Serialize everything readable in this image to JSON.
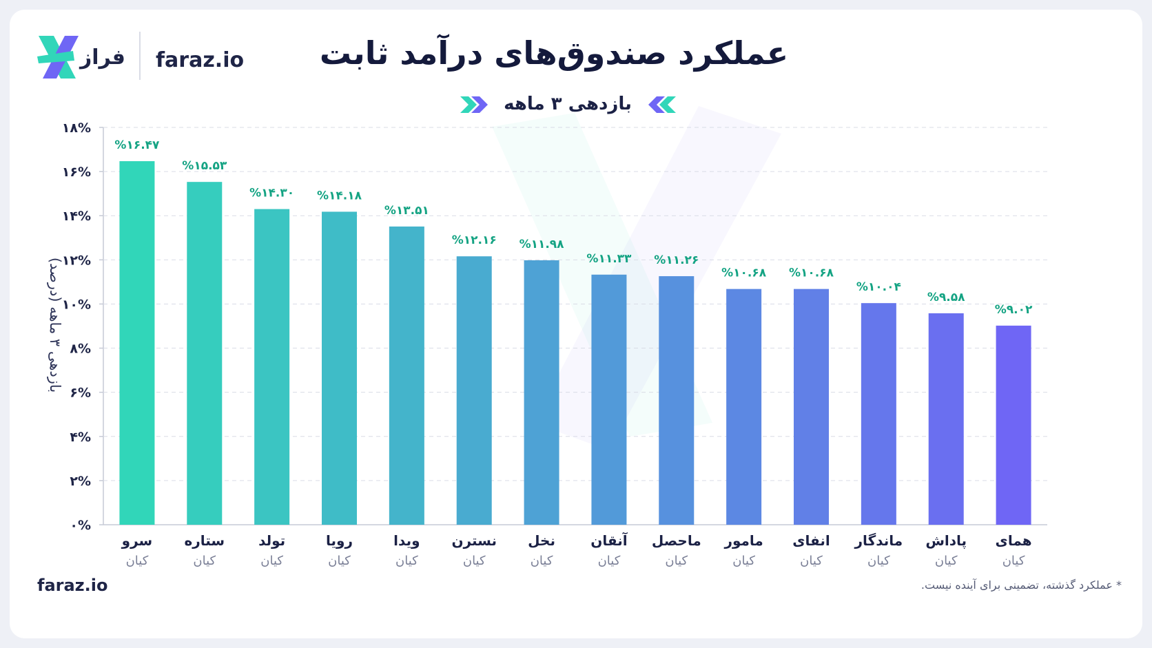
{
  "header": {
    "brand_name": "فراز",
    "site": "faraz.io",
    "title": "عملکرد صندوق‌های درآمد ثابت",
    "subtitle": "بازدهی ۳ ماهه"
  },
  "footer": {
    "site": "faraz.io",
    "disclaimer": "* عملکرد گذشته، تضمینی برای آینده نیست."
  },
  "colors": {
    "bar_start": "#31d6b9",
    "bar_end": "#6f66f5",
    "label": "#14a383",
    "grid": "#d9dce6"
  },
  "chart_data": {
    "type": "bar",
    "title": "عملکرد صندوق‌های درآمد ثابت",
    "subtitle": "بازدهی ۳ ماهه",
    "ylabel": "بازدهی ۳ ماهه (درصد)",
    "xlabel": "",
    "ylim": [
      0,
      18
    ],
    "yticks": [
      0,
      2,
      4,
      6,
      8,
      10,
      12,
      14,
      16,
      18
    ],
    "ytick_labels": [
      "۰%",
      "۲%",
      "۴%",
      "۶%",
      "۸%",
      "۱۰%",
      "۱۲%",
      "۱۴%",
      "۱۶%",
      "۱۸%"
    ],
    "grid": true,
    "categories": [
      "سرو",
      "ستاره",
      "تولد",
      "رویا",
      "ویدا",
      "نسترن",
      "نخل",
      "آنقان",
      "ماحصل",
      "مامور",
      "انفای",
      "ماندگار",
      "پاداش",
      "همای"
    ],
    "category_sub": [
      "کیان",
      "کیان",
      "کیان",
      "کیان",
      "کیان",
      "کیان",
      "کیان",
      "کیان",
      "کیان",
      "کیان",
      "کیان",
      "کیان",
      "کیان",
      "کیان"
    ],
    "values": [
      16.47,
      15.53,
      14.3,
      14.18,
      13.51,
      12.16,
      11.98,
      11.33,
      11.26,
      10.68,
      10.68,
      10.04,
      9.58,
      9.02
    ],
    "value_labels": [
      "%۱۶.۴۷",
      "%۱۵.۵۳",
      "%۱۴.۳۰",
      "%۱۴.۱۸",
      "%۱۳.۵۱",
      "%۱۲.۱۶",
      "%۱۱.۹۸",
      "%۱۱.۳۳",
      "%۱۱.۲۶",
      "%۱۰.۶۸",
      "%۱۰.۶۸",
      "%۱۰.۰۴",
      "%۹.۵۸",
      "%۹.۰۲"
    ]
  }
}
